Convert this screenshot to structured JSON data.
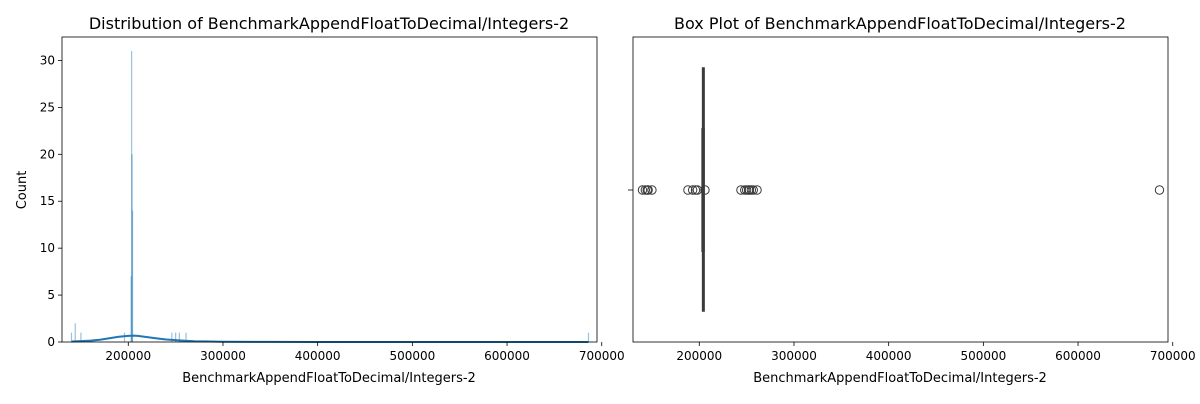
{
  "chart_data": [
    {
      "type": "histogram",
      "title": "Distribution of BenchmarkAppendFloatToDecimal/Integers-2",
      "xlabel": "BenchmarkAppendFloatToDecimal/Integers-2",
      "ylabel": "Count",
      "xlim": [
        130000,
        695000
      ],
      "ylim": [
        0,
        32.5
      ],
      "xticks": [
        200000,
        300000,
        400000,
        500000,
        600000,
        700000
      ],
      "xtick_labels": [
        "200000",
        "300000",
        "400000",
        "500000",
        "600000",
        "700000"
      ],
      "yticks": [
        0,
        5,
        10,
        15,
        20,
        25,
        30
      ],
      "ytick_labels": [
        "0",
        "5",
        "10",
        "15",
        "20",
        "25",
        "30"
      ],
      "grid": false,
      "bars": [
        {
          "x": 140000,
          "count": 1
        },
        {
          "x": 144000,
          "count": 2
        },
        {
          "x": 150000,
          "count": 1
        },
        {
          "x": 196000,
          "count": 1
        },
        {
          "x": 203000,
          "count": 7
        },
        {
          "x": 203500,
          "count": 31
        },
        {
          "x": 204000,
          "count": 20
        },
        {
          "x": 204500,
          "count": 14
        },
        {
          "x": 246000,
          "count": 1
        },
        {
          "x": 250000,
          "count": 1
        },
        {
          "x": 254000,
          "count": 1
        },
        {
          "x": 261000,
          "count": 1
        },
        {
          "x": 686000,
          "count": 1
        }
      ],
      "kde": {
        "x": [
          140000,
          150000,
          160000,
          170000,
          180000,
          190000,
          200000,
          205000,
          210000,
          220000,
          230000,
          240000,
          250000,
          260000,
          270000,
          280000,
          300000,
          350000,
          400000,
          500000,
          600000,
          686000
        ],
        "y": [
          0.05,
          0.1,
          0.15,
          0.25,
          0.4,
          0.55,
          0.65,
          0.68,
          0.65,
          0.52,
          0.38,
          0.27,
          0.2,
          0.14,
          0.09,
          0.06,
          0.03,
          0.01,
          0.0,
          0.0,
          0.0,
          0.0
        ]
      }
    },
    {
      "type": "box",
      "title": "Box Plot of BenchmarkAppendFloatToDecimal/Integers-2",
      "xlabel": "BenchmarkAppendFloatToDecimal/Integers-2",
      "xlim": [
        130000,
        695000
      ],
      "xticks": [
        200000,
        300000,
        400000,
        500000,
        600000,
        700000
      ],
      "xtick_labels": [
        "200000",
        "300000",
        "400000",
        "500000",
        "600000",
        "700000"
      ],
      "box": {
        "whisker_low": 203000,
        "q1": 203500,
        "median": 203800,
        "q3": 204300,
        "whisker_high": 205000
      },
      "outliers": [
        140000,
        143000,
        145000,
        146000,
        150000,
        188000,
        193000,
        196000,
        198000,
        206000,
        244000,
        248000,
        250000,
        252000,
        253000,
        255000,
        257000,
        261000,
        686000
      ],
      "colors": {
        "box_line": "#3a3a3a"
      }
    }
  ],
  "colors": {
    "accent": "#1f77b4"
  }
}
